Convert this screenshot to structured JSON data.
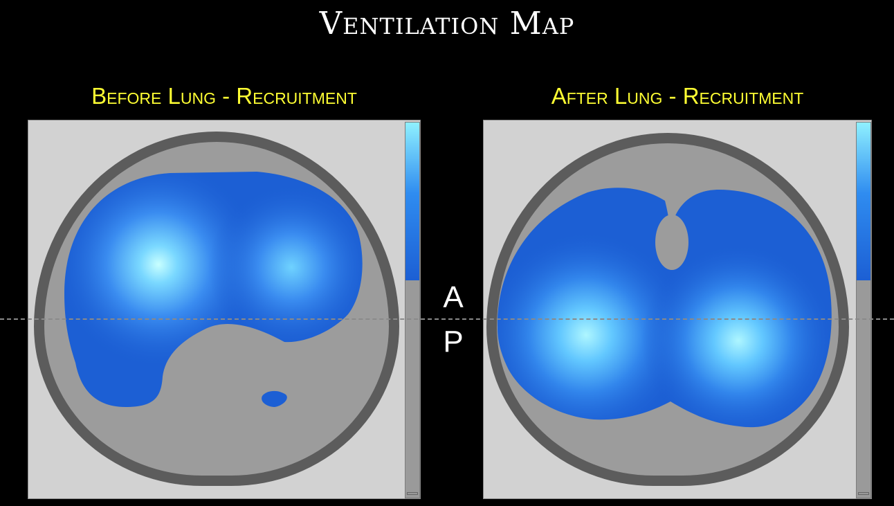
{
  "title": "Ventilation Map",
  "left_panel": {
    "title": "Before Lung - Recruitment",
    "scale_level": 0.42
  },
  "right_panel": {
    "title": "After Lung - Recruitment",
    "scale_level": 0.42
  },
  "orientation": {
    "anterior": "A",
    "posterior": "P"
  },
  "colors": {
    "background": "#000000",
    "title_text": "#ffffff",
    "panel_title": "#ffff33",
    "panel_background": "#d2d2d2",
    "body_ring": "#5c5c5c",
    "body_interior": "#9c9c9c",
    "ventilation_low": "#1c5fd4",
    "ventilation_high": "#8ff0ff",
    "divider": "#8a8a8a"
  }
}
